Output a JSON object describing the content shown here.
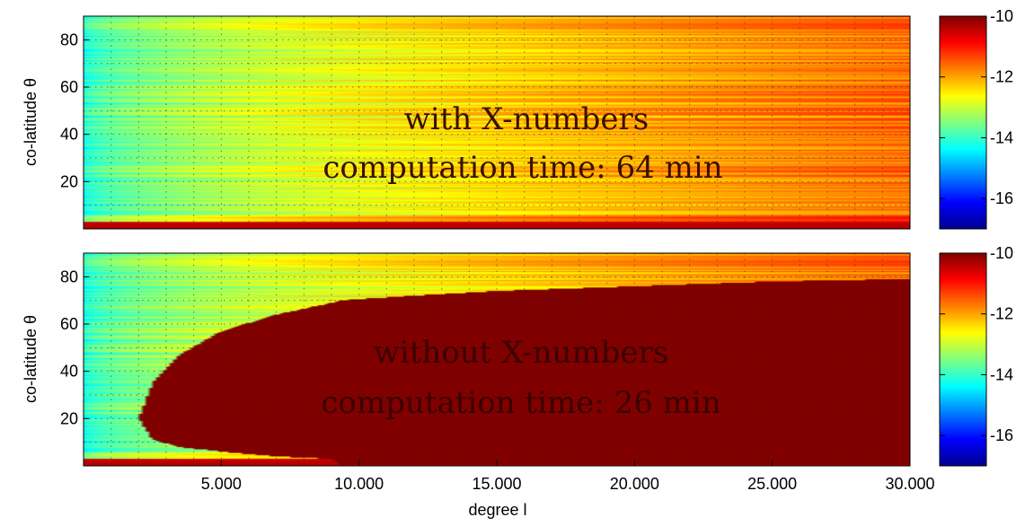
{
  "chart_data": [
    {
      "type": "heatmap",
      "title": "",
      "annotation_lines": [
        "with X-numbers",
        "computation time: 64 min"
      ],
      "annotation_color": "#3a1000",
      "ylabel": "co-latitude θ",
      "xlabel": "",
      "xlim": [
        0,
        30000
      ],
      "ylim": [
        0,
        90
      ],
      "yticks": [
        20,
        40,
        60,
        80
      ],
      "ytick_labels": [
        "20",
        "40",
        "60",
        "80"
      ],
      "xticks": [],
      "xtick_labels": [],
      "grid": true,
      "colorbar": {
        "range": [
          -17,
          -10
        ],
        "ticks": [
          -10,
          -12,
          -14,
          -16
        ],
        "tick_labels": [
          "-10",
          "-12",
          "-14",
          "-16"
        ]
      },
      "field_description": {
        "value_at_small_degree": -14.3,
        "value_at_large_degree": -11.6,
        "near_pole_value": -10.5,
        "note": "values increase with degree l; horizontal striations by co-latitude"
      },
      "saturated_region": null
    },
    {
      "type": "heatmap",
      "title": "",
      "annotation_lines": [
        "without X-numbers",
        "computation time: 26 min"
      ],
      "annotation_color": "#3a0000",
      "ylabel": "co-latitude θ",
      "xlabel": "degree l",
      "xlim": [
        0,
        30000
      ],
      "ylim": [
        0,
        90
      ],
      "yticks": [
        20,
        40,
        60,
        80
      ],
      "ytick_labels": [
        "20",
        "40",
        "60",
        "80"
      ],
      "xticks": [
        5000,
        10000,
        15000,
        20000,
        25000,
        30000
      ],
      "xtick_labels": [
        "5.000",
        "10.000",
        "15.000",
        "20.000",
        "25.000",
        "30.000"
      ],
      "grid": true,
      "colorbar": {
        "range": [
          -17,
          -10
        ],
        "ticks": [
          -10,
          -12,
          -14,
          -16
        ],
        "tick_labels": [
          "-10",
          "-12",
          "-14",
          "-16"
        ]
      },
      "field_description": {
        "value_at_small_degree": -14.3,
        "value_at_large_degree": -11.6,
        "near_pole_value": -10.5,
        "note": "same field as above outside the saturated (failed) region"
      },
      "saturated_region": {
        "value": -10,
        "boundary": [
          {
            "degree": 2000,
            "theta_low": 20,
            "theta_high": 20
          },
          {
            "degree": 2500,
            "theta_low": 11,
            "theta_high": 35
          },
          {
            "degree": 3500,
            "theta_low": 8,
            "theta_high": 47
          },
          {
            "degree": 5000,
            "theta_low": 6,
            "theta_high": 57
          },
          {
            "degree": 7000,
            "theta_low": 4,
            "theta_high": 64
          },
          {
            "degree": 9000,
            "theta_low": 3,
            "theta_high": 69
          },
          {
            "degree": 9300,
            "theta_low": 0.5,
            "theta_high": 70
          },
          {
            "degree": 12000,
            "theta_low": 0.5,
            "theta_high": 72
          },
          {
            "degree": 15000,
            "theta_low": 0.5,
            "theta_high": 74
          },
          {
            "degree": 20000,
            "theta_low": 0.5,
            "theta_high": 76
          },
          {
            "degree": 25000,
            "theta_low": 0.5,
            "theta_high": 78
          },
          {
            "degree": 29500,
            "theta_low": 0.5,
            "theta_high": 79
          }
        ]
      }
    }
  ]
}
